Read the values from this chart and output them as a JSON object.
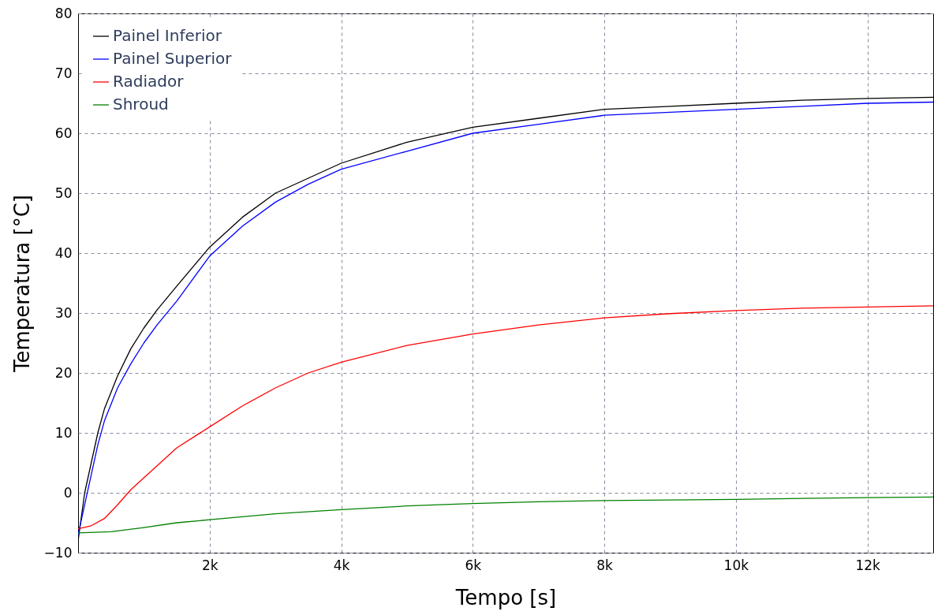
{
  "chart_data": {
    "type": "line",
    "xlabel": "Tempo [s]",
    "ylabel": "Temperatura [°C]",
    "xlim": [
      0,
      13000
    ],
    "ylim": [
      -10,
      80
    ],
    "xticks": [
      {
        "value": 2000,
        "label": "2k"
      },
      {
        "value": 4000,
        "label": "4k"
      },
      {
        "value": 6000,
        "label": "6k"
      },
      {
        "value": 8000,
        "label": "8k"
      },
      {
        "value": 10000,
        "label": "10k"
      },
      {
        "value": 12000,
        "label": "12k"
      }
    ],
    "yticks": [
      {
        "value": -10,
        "label": "−10"
      },
      0,
      10,
      20,
      30,
      40,
      50,
      60,
      70,
      80
    ],
    "grid": true,
    "legend": "top left",
    "marker": "none",
    "line_style": "solid",
    "series": [
      {
        "name": "Painel Inferior",
        "color": "#000000",
        "x": [
          0,
          100,
          200,
          300,
          400,
          600,
          800,
          1000,
          1200,
          1500,
          2000,
          2500,
          3000,
          3500,
          4000,
          5000,
          6000,
          7000,
          8000,
          9000,
          10000,
          11000,
          12000,
          13000
        ],
        "values": [
          -8,
          0,
          5,
          10,
          14,
          19.5,
          24,
          27.5,
          30.5,
          34.5,
          41,
          46,
          50,
          52.5,
          55,
          58.5,
          61,
          62.5,
          64,
          64.5,
          65,
          65.5,
          65.8,
          66
        ]
      },
      {
        "name": "Painel Superior",
        "color": "#0000ff",
        "x": [
          0,
          100,
          200,
          300,
          400,
          600,
          800,
          1000,
          1200,
          1500,
          2000,
          2500,
          3000,
          3500,
          4000,
          5000,
          6000,
          7000,
          8000,
          9000,
          10000,
          11000,
          12000,
          13000
        ],
        "values": [
          -7,
          -2,
          3,
          8,
          12,
          17.5,
          21.5,
          25,
          28,
          32,
          39.5,
          44.5,
          48.5,
          51.5,
          54,
          57,
          60,
          61.5,
          63,
          63.5,
          64,
          64.5,
          65,
          65.2
        ]
      },
      {
        "name": "Radiador",
        "color": "#ff0000",
        "x": [
          0,
          200,
          400,
          600,
          800,
          1000,
          1500,
          2000,
          2500,
          3000,
          3500,
          4000,
          5000,
          6000,
          7000,
          8000,
          9000,
          10000,
          11000,
          12000,
          13000
        ],
        "values": [
          -6,
          -5.5,
          -4.3,
          -2,
          0.5,
          2.5,
          7.5,
          11,
          14.5,
          17.5,
          20,
          21.8,
          24.6,
          26.5,
          28,
          29.2,
          29.9,
          30.4,
          30.8,
          31,
          31.2
        ]
      },
      {
        "name": "Shroud",
        "color": "#008000",
        "x": [
          0,
          500,
          1000,
          1500,
          2000,
          3000,
          4000,
          5000,
          6000,
          7000,
          8000,
          10000,
          12000,
          13000
        ],
        "values": [
          -6.7,
          -6.5,
          -5.8,
          -5,
          -4.5,
          -3.5,
          -2.8,
          -2.2,
          -1.8,
          -1.5,
          -1.3,
          -1.1,
          -0.8,
          -0.7
        ]
      }
    ]
  }
}
